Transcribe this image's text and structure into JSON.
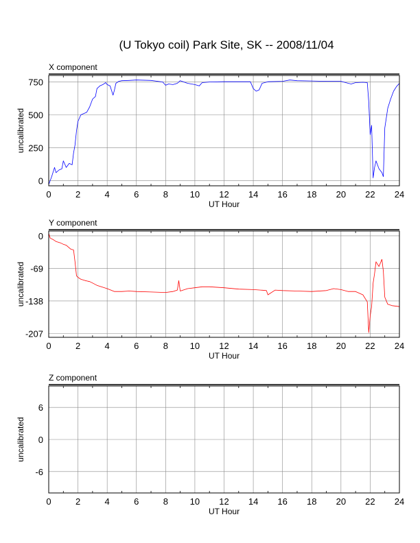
{
  "title": "(U Tokyo coil) Park Site, SK -- 2008/11/04",
  "chart_data": [
    {
      "type": "line",
      "panel_title": "X component",
      "xlabel": "UT Hour",
      "ylabel": "uncalibrated",
      "xlim": [
        0,
        24
      ],
      "ylim": [
        -40,
        800
      ],
      "xticks": [
        0,
        2,
        4,
        6,
        8,
        10,
        12,
        14,
        16,
        18,
        20,
        22,
        24
      ],
      "yticks": [
        0,
        250,
        500,
        750
      ],
      "grid": true,
      "color": "#0000ff",
      "series": [
        {
          "x": [
            0,
            0.2,
            0.4,
            0.5,
            0.7,
            0.9,
            1.0,
            1.2,
            1.4,
            1.6,
            1.7,
            1.8,
            1.9,
            2.0,
            2.2,
            2.4,
            2.6,
            2.8,
            3.0,
            3.2,
            3.3,
            3.5,
            3.7,
            3.9,
            4.0,
            4.2,
            4.4,
            4.5,
            4.6,
            4.8,
            5.0,
            5.5,
            6.0,
            7.0,
            7.8,
            8.0,
            8.2,
            8.5,
            8.8,
            9.0,
            9.5,
            10.0,
            10.3,
            10.5,
            11.0,
            12.0,
            13.0,
            13.8,
            14.0,
            14.2,
            14.4,
            14.6,
            15.0,
            16.0,
            16.5,
            17.0,
            18.0,
            19.0,
            20.0,
            20.5,
            20.7,
            21.0,
            21.5,
            21.8,
            21.9,
            22.0,
            22.1,
            22.2,
            22.3,
            22.4,
            22.6,
            22.8,
            22.9,
            23.0,
            23.2,
            23.4,
            23.6,
            23.8,
            24.0
          ],
          "y": [
            -30,
            30,
            100,
            60,
            80,
            90,
            150,
            100,
            130,
            120,
            210,
            270,
            380,
            450,
            500,
            510,
            520,
            560,
            620,
            640,
            700,
            720,
            730,
            745,
            730,
            720,
            650,
            690,
            740,
            755,
            760,
            762,
            765,
            762,
            750,
            725,
            735,
            730,
            740,
            760,
            740,
            730,
            720,
            745,
            750,
            752,
            752,
            752,
            700,
            680,
            690,
            740,
            752,
            755,
            765,
            760,
            758,
            755,
            755,
            740,
            735,
            745,
            748,
            745,
            600,
            350,
            420,
            20,
            100,
            150,
            90,
            60,
            30,
            400,
            550,
            620,
            680,
            715,
            740
          ]
        }
      ]
    },
    {
      "type": "line",
      "panel_title": "Y component",
      "xlabel": "UT Hour",
      "ylabel": "uncalibrated",
      "xlim": [
        0,
        24
      ],
      "ylim": [
        -215,
        10
      ],
      "xticks": [
        0,
        2,
        4,
        6,
        8,
        10,
        12,
        14,
        16,
        18,
        20,
        22,
        24
      ],
      "yticks": [
        0,
        -69,
        -138,
        -207
      ],
      "grid": true,
      "color": "#ff0000",
      "series": [
        {
          "x": [
            0,
            0.1,
            0.3,
            0.5,
            0.8,
            1.0,
            1.2,
            1.5,
            1.7,
            1.8,
            1.9,
            2.0,
            2.2,
            2.5,
            2.8,
            3.0,
            3.3,
            3.6,
            4.0,
            4.5,
            5.0,
            5.5,
            6.0,
            7.0,
            8.0,
            8.5,
            8.8,
            8.9,
            9.0,
            9.5,
            10.0,
            10.5,
            11.0,
            12.0,
            13.0,
            14.0,
            14.5,
            14.9,
            15.0,
            15.5,
            16.0,
            17.0,
            18.0,
            19.0,
            19.5,
            20.0,
            20.5,
            21.0,
            21.5,
            21.8,
            21.9,
            22.0,
            22.1,
            22.2,
            22.3,
            22.4,
            22.6,
            22.8,
            22.9,
            23.0,
            23.2,
            23.5,
            24.0
          ],
          "y": [
            5,
            -5,
            -8,
            -12,
            -15,
            -18,
            -20,
            -28,
            -30,
            -55,
            -85,
            -88,
            -92,
            -95,
            -97,
            -100,
            -105,
            -108,
            -112,
            -118,
            -118,
            -117,
            -118,
            -119,
            -120,
            -118,
            -115,
            -95,
            -117,
            -112,
            -110,
            -108,
            -108,
            -110,
            -113,
            -114,
            -115,
            -116,
            -125,
            -115,
            -116,
            -117,
            -118,
            -116,
            -112,
            -114,
            -118,
            -118,
            -125,
            -140,
            -205,
            -170,
            -150,
            -100,
            -80,
            -55,
            -65,
            -50,
            -75,
            -130,
            -145,
            -148,
            -150
          ]
        }
      ]
    },
    {
      "type": "line",
      "panel_title": "Z component",
      "xlabel": "UT Hour",
      "ylabel": "uncalibrated",
      "xlim": [
        0,
        24
      ],
      "ylim": [
        -10,
        10
      ],
      "xticks": [
        0,
        2,
        4,
        6,
        8,
        10,
        12,
        14,
        16,
        18,
        20,
        22,
        24
      ],
      "yticks": [
        6,
        0,
        -6
      ],
      "grid": true,
      "color": "#00aa00",
      "series": []
    }
  ]
}
